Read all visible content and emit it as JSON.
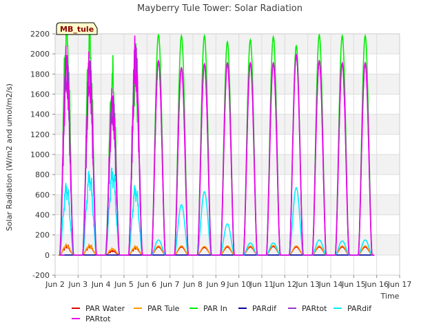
{
  "chart_data": {
    "type": "line",
    "title": "Mayberry Tule Tower: Solar Radiation",
    "site_label": "MB_tule",
    "xlabel": "Time",
    "ylabel": "Solar Radiation (W/m2 and umol/m2/s)",
    "x_range": [
      2,
      17
    ],
    "ylim": [
      -200,
      2200
    ],
    "x_ticks": [
      {
        "value": 2,
        "label": "Jun 2"
      },
      {
        "value": 3,
        "label": "Jun 3"
      },
      {
        "value": 4,
        "label": "Jun 4"
      },
      {
        "value": 5,
        "label": "Jun 5"
      },
      {
        "value": 6,
        "label": "Jun 6"
      },
      {
        "value": 7,
        "label": "Jun 7"
      },
      {
        "value": 8,
        "label": "Jun 8"
      },
      {
        "value": 9,
        "label": "Jun 9"
      },
      {
        "value": 10,
        "label": "Jun 10"
      },
      {
        "value": 11,
        "label": "Jun 11"
      },
      {
        "value": 12,
        "label": "Jun 12"
      },
      {
        "value": 13,
        "label": "Jun 13"
      },
      {
        "value": 14,
        "label": "Jun 14"
      },
      {
        "value": 15,
        "label": "Jun 15"
      },
      {
        "value": 16,
        "label": "Jun 16"
      },
      {
        "value": 17,
        "label": "Jun 17"
      }
    ],
    "y_ticks": [
      -200,
      0,
      200,
      400,
      600,
      800,
      1000,
      1200,
      1400,
      1600,
      1800,
      2000,
      2200
    ],
    "grid": true,
    "legend_position": "bottom",
    "days": [
      2.5,
      3.5,
      4.5,
      5.5,
      6.5,
      7.5,
      8.5,
      9.5,
      10.5,
      11.5,
      12.5,
      13.5,
      14.5,
      15.5
    ],
    "series": [
      {
        "name": "PAR Water",
        "color": "#dd0000",
        "peaks": [
          85,
          85,
          40,
          70,
          80,
          80,
          75,
          80,
          80,
          85,
          80,
          80,
          80,
          80
        ]
      },
      {
        "name": "PAR Tule",
        "color": "#ff9900",
        "peaks": [
          95,
          90,
          60,
          80,
          90,
          90,
          85,
          90,
          90,
          95,
          90,
          90,
          90,
          90
        ]
      },
      {
        "name": "PAR In",
        "color": "#00ee00",
        "peaks": [
          2190,
          2060,
          1700,
          1800,
          2190,
          2180,
          2180,
          2120,
          2140,
          2170,
          2080,
          2190,
          2180,
          2180
        ]
      },
      {
        "name": "PARdif",
        "color": "#000099",
        "peaks": [
          0,
          0,
          0,
          0,
          0,
          0,
          0,
          0,
          0,
          0,
          0,
          0,
          0,
          0
        ]
      },
      {
        "name": "PARtot",
        "color": "#9933cc",
        "peaks": [
          1830,
          1780,
          1460,
          1900,
          1930,
          1860,
          1900,
          1910,
          1910,
          1910,
          1980,
          1930,
          1910,
          1910
        ]
      },
      {
        "name": "PARdif",
        "color": "#00eeff",
        "peaks": [
          660,
          770,
          800,
          640,
          150,
          500,
          630,
          310,
          120,
          120,
          670,
          150,
          140,
          150
        ]
      },
      {
        "name": "PARtot",
        "color": "#ee00ee",
        "peaks": [
          1830,
          1780,
          1460,
          1920,
          1930,
          1860,
          1900,
          1910,
          1910,
          1910,
          1990,
          1930,
          1910,
          1910
        ]
      }
    ]
  }
}
